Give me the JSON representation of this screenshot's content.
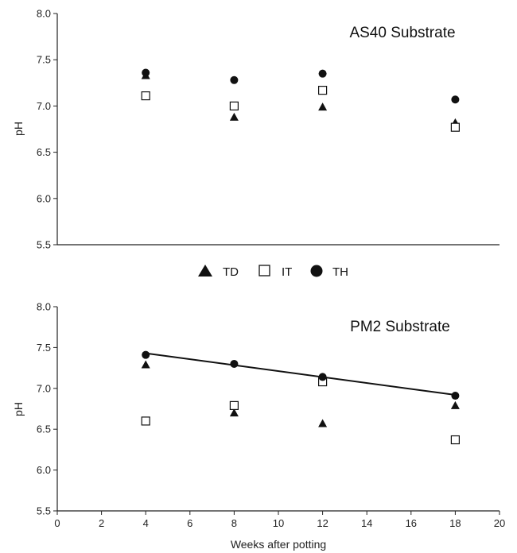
{
  "legend": [
    {
      "name": "TD",
      "marker": "triangle"
    },
    {
      "name": "IT",
      "marker": "square"
    },
    {
      "name": "TH",
      "marker": "circle"
    }
  ],
  "chart_data": [
    {
      "type": "scatter",
      "title": "AS40 Substrate",
      "xlabel": "",
      "ylabel": "pH",
      "ylim": [
        5.5,
        8.0
      ],
      "xlim": [
        0,
        20
      ],
      "yticks": [
        "8.0",
        "7.5",
        "7.0",
        "6.5",
        "6.0",
        "5.5"
      ],
      "series": [
        {
          "name": "TD",
          "marker": "triangle",
          "x": [
            4,
            8,
            12,
            18
          ],
          "y": [
            7.33,
            6.88,
            6.99,
            6.82
          ]
        },
        {
          "name": "IT",
          "marker": "square",
          "x": [
            4,
            8,
            12,
            18
          ],
          "y": [
            7.11,
            7.0,
            7.17,
            6.77
          ]
        },
        {
          "name": "TH",
          "marker": "circle",
          "x": [
            4,
            8,
            12,
            18
          ],
          "y": [
            7.36,
            7.28,
            7.35,
            7.07
          ]
        }
      ]
    },
    {
      "type": "scatter",
      "title": "PM2 Substrate",
      "xlabel": "Weeks after potting",
      "ylabel": "pH",
      "ylim": [
        5.5,
        8.0
      ],
      "xlim": [
        0,
        20
      ],
      "yticks": [
        "8.0",
        "7.5",
        "7.0",
        "6.5",
        "6.0",
        "5.5"
      ],
      "xticks": [
        "0",
        "2",
        "4",
        "6",
        "8",
        "10",
        "12",
        "14",
        "16",
        "18",
        "20"
      ],
      "series": [
        {
          "name": "TD",
          "marker": "triangle",
          "x": [
            4,
            8,
            12,
            18
          ],
          "y": [
            7.29,
            6.7,
            6.57,
            6.79
          ]
        },
        {
          "name": "IT",
          "marker": "square",
          "x": [
            4,
            8,
            12,
            18
          ],
          "y": [
            6.6,
            6.79,
            7.08,
            6.37
          ]
        },
        {
          "name": "TH",
          "marker": "circle",
          "x": [
            4,
            8,
            12,
            18
          ],
          "y": [
            7.41,
            7.3,
            7.14,
            6.91
          ]
        }
      ],
      "trendline": {
        "series": "TH",
        "x": [
          4,
          18
        ],
        "y": [
          7.43,
          6.92
        ]
      }
    }
  ]
}
